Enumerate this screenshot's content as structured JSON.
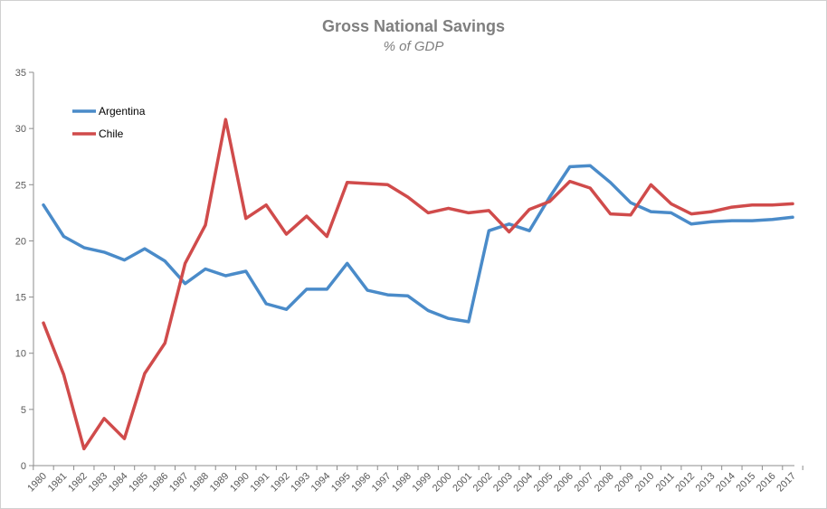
{
  "chart_data": {
    "type": "line",
    "title": "Gross National Savings",
    "subtitle": "% of GDP",
    "xlabel": "",
    "ylabel": "",
    "ylim": [
      0,
      35
    ],
    "yticks": [
      0,
      5,
      10,
      15,
      20,
      25,
      30,
      35
    ],
    "legend_position": "top-left",
    "grid": false,
    "x": [
      "1980",
      "1981",
      "1982",
      "1983",
      "1984",
      "1985",
      "1986",
      "1987",
      "1988",
      "1989",
      "1990",
      "1991",
      "1992",
      "1993",
      "1994",
      "1995",
      "1996",
      "1997",
      "1998",
      "1999",
      "2000",
      "2001",
      "2002",
      "2003",
      "2004",
      "2005",
      "2006",
      "2007",
      "2008",
      "2009",
      "2010",
      "2011",
      "2012",
      "2013",
      "2014",
      "2015",
      "2016",
      "2017"
    ],
    "series": [
      {
        "name": "Argentina",
        "color": "#4a8bc9",
        "values": [
          23.2,
          20.4,
          19.4,
          19.0,
          18.3,
          19.3,
          18.2,
          16.2,
          17.5,
          16.9,
          17.3,
          14.4,
          13.9,
          15.7,
          15.7,
          18.0,
          15.6,
          15.2,
          15.1,
          13.8,
          13.1,
          12.8,
          20.9,
          21.5,
          20.9,
          23.9,
          26.6,
          26.7,
          25.2,
          23.4,
          22.6,
          22.5,
          21.5,
          21.7,
          21.8,
          21.8,
          21.9,
          22.1
        ]
      },
      {
        "name": "Chile",
        "color": "#d04b4b",
        "values": [
          12.7,
          8.1,
          1.5,
          4.2,
          2.4,
          8.2,
          10.9,
          18.0,
          21.4,
          30.8,
          22.0,
          23.2,
          20.6,
          22.2,
          20.4,
          25.2,
          25.1,
          25.0,
          23.9,
          22.5,
          22.9,
          22.5,
          22.7,
          20.8,
          22.8,
          23.5,
          25.3,
          24.7,
          22.4,
          22.3,
          25.0,
          23.3,
          22.4,
          22.6,
          23.0,
          23.2,
          23.2,
          23.3
        ]
      }
    ]
  }
}
